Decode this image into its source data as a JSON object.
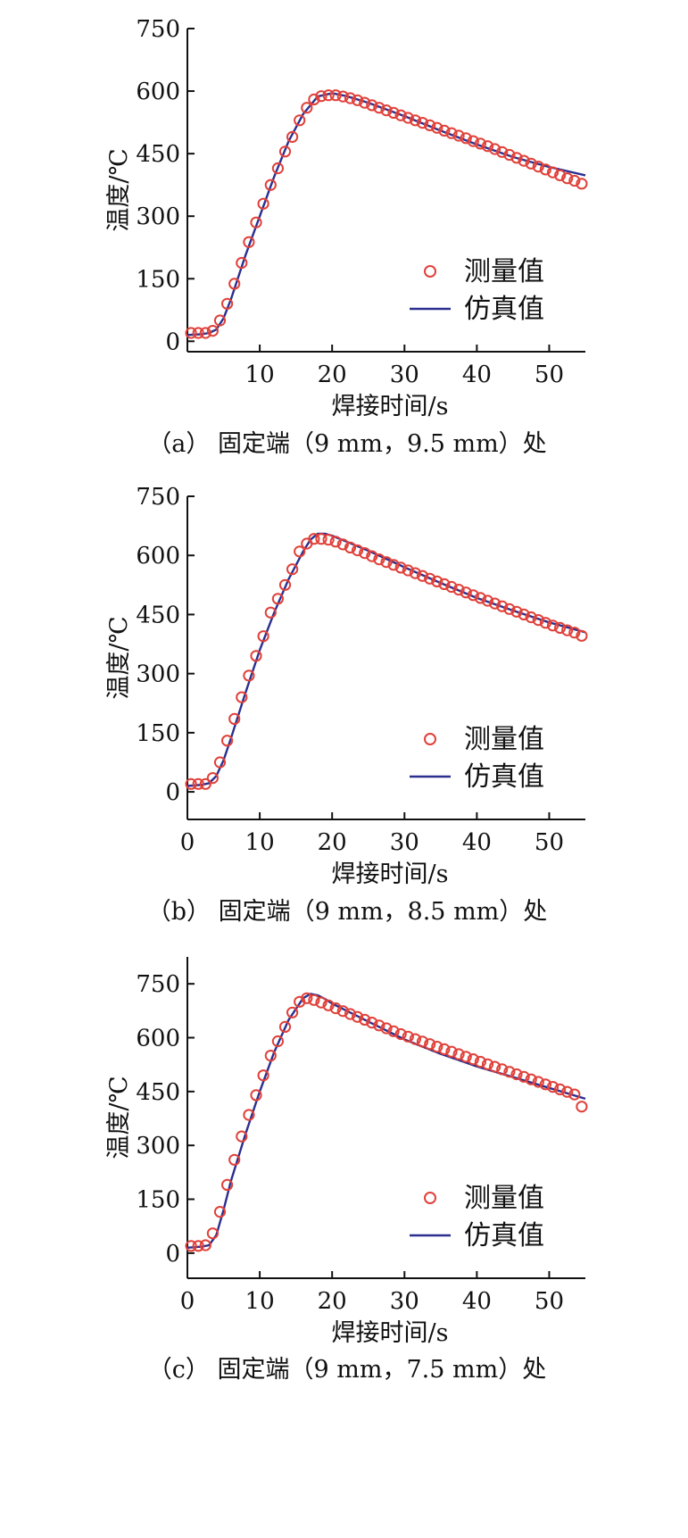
{
  "figure": {
    "panels": [
      {
        "caption": "（a） 固定端（9 mm，9.5 mm）处",
        "xlabel": "焊接时间/s",
        "ylabel": "温度/℃",
        "legend": {
          "measured": "测量值",
          "simulated": "仿真值"
        }
      },
      {
        "caption": "（b） 固定端（9 mm，8.5 mm）处",
        "xlabel": "焊接时间/s",
        "ylabel": "温度/℃",
        "legend": {
          "measured": "测量值",
          "simulated": "仿真值"
        }
      },
      {
        "caption": "（c） 固定端（9 mm，7.5 mm）处",
        "xlabel": "焊接时间/s",
        "ylabel": "温度/℃",
        "legend": {
          "measured": "测量值",
          "simulated": "仿真值"
        }
      }
    ]
  },
  "colors": {
    "measured": "#e0413a",
    "simulated": "#2b2f8f",
    "axis": "#111111"
  },
  "chart_data": [
    {
      "type": "line",
      "xlabel": "焊接时间/s",
      "ylabel": "温度/℃",
      "xlim": [
        0,
        55
      ],
      "ylim": [
        -25,
        750
      ],
      "xticks": [
        "10",
        "20",
        "30",
        "40",
        "50"
      ],
      "xtick_values": [
        10,
        20,
        30,
        40,
        50
      ],
      "yticks": [
        "0",
        "150",
        "300",
        "450",
        "600",
        "750"
      ],
      "ytick_values": [
        0,
        150,
        300,
        450,
        600,
        750
      ],
      "grid": false,
      "legend_position": "bottom-right",
      "series": [
        {
          "name": "测量值",
          "style": "markers",
          "x": [
            0.5,
            1.5,
            2.5,
            3.5,
            4.5,
            5.5,
            6.5,
            7.5,
            8.5,
            9.5,
            10.5,
            11.5,
            12.5,
            13.5,
            14.5,
            15.5,
            16.5,
            17.5,
            18.5,
            19.5,
            20.5,
            21.5,
            22.5,
            23.5,
            24.5,
            25.5,
            26.5,
            27.5,
            28.5,
            29.5,
            30.5,
            31.5,
            32.5,
            33.5,
            34.5,
            35.5,
            36.5,
            37.5,
            38.5,
            39.5,
            40.5,
            41.5,
            42.5,
            43.5,
            44.5,
            45.5,
            46.5,
            47.5,
            48.5,
            49.5,
            50.5,
            51.5,
            52.5,
            53.5,
            54.5
          ],
          "y": [
            20,
            20,
            20,
            25,
            50,
            90,
            138,
            188,
            238,
            285,
            330,
            375,
            415,
            455,
            490,
            530,
            560,
            580,
            588,
            590,
            590,
            587,
            583,
            578,
            572,
            566,
            560,
            554,
            548,
            542,
            536,
            530,
            524,
            518,
            512,
            505,
            499,
            493,
            487,
            480,
            474,
            468,
            461,
            454,
            447,
            440,
            433,
            426,
            419,
            412,
            405,
            398,
            391,
            385,
            378
          ]
        },
        {
          "name": "仿真值",
          "style": "line",
          "x": [
            0,
            2,
            3,
            4,
            5,
            6,
            8,
            10,
            12,
            14,
            16,
            18,
            20,
            22,
            25,
            30,
            35,
            40,
            45,
            50,
            55
          ],
          "y": [
            15,
            17,
            20,
            28,
            55,
            100,
            205,
            300,
            395,
            480,
            545,
            587,
            595,
            588,
            572,
            540,
            505,
            472,
            442,
            418,
            398
          ]
        }
      ]
    },
    {
      "type": "line",
      "xlabel": "焊接时间/s",
      "ylabel": "温度/℃",
      "xlim": [
        0,
        55
      ],
      "ylim": [
        -70,
        750
      ],
      "xticks": [
        "0",
        "10",
        "20",
        "30",
        "40",
        "50"
      ],
      "xtick_values": [
        0,
        10,
        20,
        30,
        40,
        50
      ],
      "yticks": [
        "0",
        "150",
        "300",
        "450",
        "600",
        "750"
      ],
      "ytick_values": [
        0,
        150,
        300,
        450,
        600,
        750
      ],
      "grid": false,
      "legend_position": "bottom-right",
      "series": [
        {
          "name": "测量值",
          "style": "markers",
          "x": [
            0.5,
            1.5,
            2.5,
            3.5,
            4.5,
            5.5,
            6.5,
            7.5,
            8.5,
            9.5,
            10.5,
            11.5,
            12.5,
            13.5,
            14.5,
            15.5,
            16.5,
            17.5,
            18.5,
            19.5,
            20.5,
            21.5,
            22.5,
            23.5,
            24.5,
            25.5,
            26.5,
            27.5,
            28.5,
            29.5,
            30.5,
            31.5,
            32.5,
            33.5,
            34.5,
            35.5,
            36.5,
            37.5,
            38.5,
            39.5,
            40.5,
            41.5,
            42.5,
            43.5,
            44.5,
            45.5,
            46.5,
            47.5,
            48.5,
            49.5,
            50.5,
            51.5,
            52.5,
            53.5,
            54.5
          ],
          "y": [
            20,
            20,
            20,
            35,
            75,
            130,
            185,
            240,
            295,
            345,
            395,
            455,
            490,
            525,
            565,
            610,
            630,
            642,
            642,
            640,
            635,
            628,
            620,
            613,
            606,
            598,
            590,
            583,
            576,
            569,
            562,
            555,
            548,
            541,
            534,
            527,
            520,
            513,
            506,
            499,
            492,
            485,
            478,
            471,
            464,
            457,
            450,
            443,
            436,
            429,
            422,
            416,
            410,
            404,
            396
          ]
        },
        {
          "name": "仿真值",
          "style": "line",
          "x": [
            0,
            2,
            3,
            4,
            5,
            6,
            8,
            10,
            12,
            14,
            16,
            17,
            18,
            19,
            20,
            22,
            25,
            30,
            35,
            40,
            45,
            50,
            55
          ],
          "y": [
            15,
            18,
            22,
            40,
            80,
            135,
            250,
            360,
            455,
            540,
            610,
            640,
            655,
            655,
            650,
            635,
            612,
            570,
            530,
            492,
            460,
            430,
            405
          ]
        }
      ]
    },
    {
      "type": "line",
      "xlabel": "焊接时间/s",
      "ylabel": "温度/℃",
      "xlim": [
        0,
        55
      ],
      "ylim": [
        -70,
        825
      ],
      "xticks": [
        "0",
        "10",
        "20",
        "30",
        "40",
        "50"
      ],
      "xtick_values": [
        0,
        10,
        20,
        30,
        40,
        50
      ],
      "yticks": [
        "0",
        "150",
        "300",
        "450",
        "600",
        "750"
      ],
      "ytick_values": [
        0,
        150,
        300,
        450,
        600,
        750
      ],
      "grid": false,
      "legend_position": "bottom-right",
      "series": [
        {
          "name": "测量值",
          "style": "markers",
          "x": [
            0.5,
            1.5,
            2.5,
            3.5,
            4.5,
            5.5,
            6.5,
            7.5,
            8.5,
            9.5,
            10.5,
            11.5,
            12.5,
            13.5,
            14.5,
            15.5,
            16.5,
            17.5,
            18.5,
            19.5,
            20.5,
            21.5,
            22.5,
            23.5,
            24.5,
            25.5,
            26.5,
            27.5,
            28.5,
            29.5,
            30.5,
            31.5,
            32.5,
            33.5,
            34.5,
            35.5,
            36.5,
            37.5,
            38.5,
            39.5,
            40.5,
            41.5,
            42.5,
            43.5,
            44.5,
            45.5,
            46.5,
            47.5,
            48.5,
            49.5,
            50.5,
            51.5,
            52.5,
            53.5,
            54.5
          ],
          "y": [
            20,
            20,
            22,
            55,
            115,
            190,
            260,
            325,
            385,
            440,
            495,
            550,
            590,
            630,
            670,
            700,
            710,
            705,
            698,
            690,
            682,
            674,
            666,
            658,
            650,
            642,
            634,
            626,
            618,
            610,
            603,
            596,
            589,
            582,
            575,
            568,
            561,
            554,
            547,
            540,
            533,
            526,
            519,
            512,
            505,
            498,
            491,
            484,
            477,
            470,
            463,
            456,
            449,
            442,
            408
          ]
        },
        {
          "name": "仿真值",
          "style": "line",
          "x": [
            0,
            2,
            3,
            4,
            5,
            6,
            8,
            10,
            12,
            14,
            16,
            17,
            18,
            19,
            20,
            22,
            25,
            30,
            35,
            40,
            45,
            50,
            55
          ],
          "y": [
            15,
            18,
            22,
            50,
            120,
            200,
            330,
            450,
            560,
            650,
            710,
            722,
            718,
            708,
            695,
            675,
            645,
            595,
            555,
            520,
            490,
            460,
            430
          ]
        }
      ]
    }
  ]
}
